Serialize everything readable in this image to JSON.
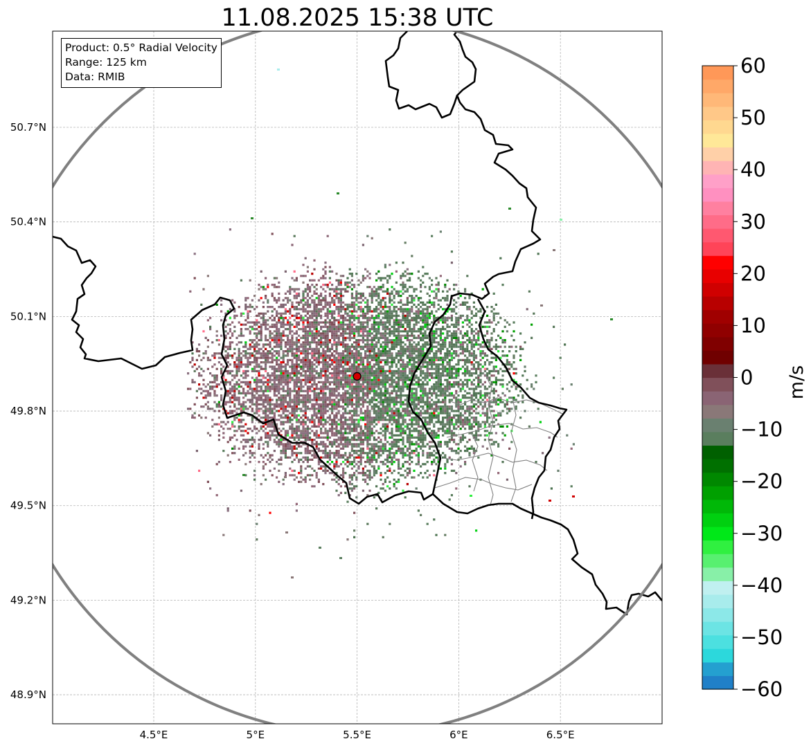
{
  "title": "11.08.2025 15:38 UTC",
  "info_box": {
    "product": "Product: 0.5° Radial Velocity",
    "range": "Range: 125 km",
    "data": "Data: RMIB"
  },
  "axes": {
    "x_ticks": [
      {
        "value": 4.5,
        "label": "4.5°E"
      },
      {
        "value": 5.0,
        "label": "5°E"
      },
      {
        "value": 5.5,
        "label": "5.5°E"
      },
      {
        "value": 6.0,
        "label": "6°E"
      },
      {
        "value": 6.5,
        "label": "6.5°E"
      }
    ],
    "y_ticks": [
      {
        "value": 50.7,
        "label": "50.7°N"
      },
      {
        "value": 50.4,
        "label": "50.4°N"
      },
      {
        "value": 50.1,
        "label": "50.1°N"
      },
      {
        "value": 49.8,
        "label": "49.8°N"
      },
      {
        "value": 49.5,
        "label": "49.5°N"
      },
      {
        "value": 49.2,
        "label": "49.2°N"
      },
      {
        "value": 48.9,
        "label": "48.9°N"
      }
    ],
    "lon_range": [
      4.0,
      7.0
    ],
    "lat_range": [
      48.8,
      51.0
    ],
    "grid": true
  },
  "radar_site": {
    "lon": 5.5,
    "lat": 49.91
  },
  "colorbar": {
    "label": "m/s",
    "min": -60,
    "max": 60,
    "ticks": [
      {
        "value": 60,
        "label": "60"
      },
      {
        "value": 50,
        "label": "50"
      },
      {
        "value": 40,
        "label": "40"
      },
      {
        "value": 30,
        "label": "30"
      },
      {
        "value": 20,
        "label": "20"
      },
      {
        "value": 10,
        "label": "10"
      },
      {
        "value": 0,
        "label": "0"
      },
      {
        "value": -10,
        "label": "−10"
      },
      {
        "value": -20,
        "label": "−20"
      },
      {
        "value": -30,
        "label": "−30"
      },
      {
        "value": -40,
        "label": "−40"
      },
      {
        "value": -50,
        "label": "−50"
      },
      {
        "value": -60,
        "label": "−60"
      }
    ],
    "stops": [
      "#2080c8",
      "#24a0d0",
      "#2cd8dc",
      "#4ce0e0",
      "#6ce4e4",
      "#8ce8e8",
      "#a8ecec",
      "#c0f0f0",
      "#88f0a8",
      "#58f070",
      "#30f040",
      "#00e818",
      "#00d010",
      "#00b808",
      "#00a000",
      "#008800",
      "#007000",
      "#006000",
      "#5a7e5e",
      "#6a8070",
      "#8a7878",
      "#8a6474",
      "#80505a",
      "#6a3038",
      "#700000",
      "#800000",
      "#900000",
      "#a00000",
      "#b80000",
      "#d00000",
      "#e80000",
      "#ff0000",
      "#ff4458",
      "#ff5870",
      "#ff6c88",
      "#ff80a0",
      "#ff90c0",
      "#ffa0c8",
      "#ffb4b4",
      "#ffd0a8",
      "#ffe898",
      "#ffd890",
      "#ffc888",
      "#ffb878",
      "#ffa868",
      "#ff9858"
    ]
  },
  "colors": {
    "border": "#000000",
    "range_ring": "#808080",
    "subdivision": "#808080",
    "grid": "#b4b4b4",
    "radar_site": "#d40000"
  }
}
